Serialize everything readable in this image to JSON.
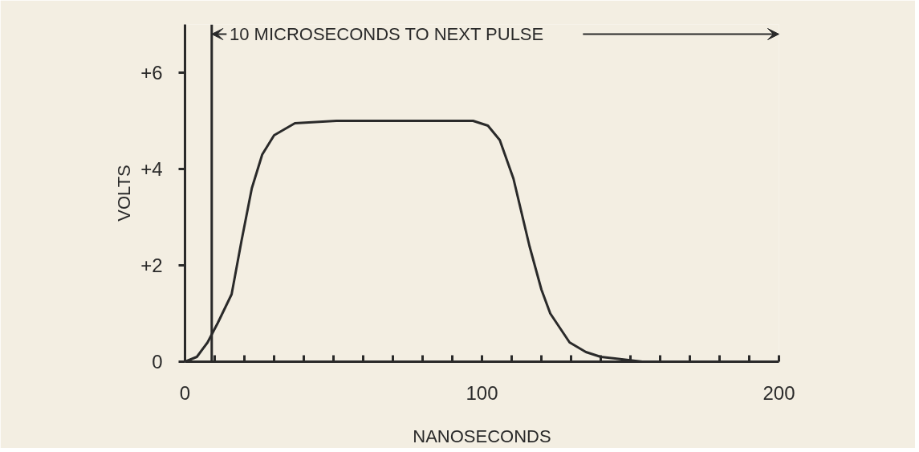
{
  "chart_data": {
    "type": "line",
    "xlabel": "NANOSECONDS",
    "ylabel": "VOLTS",
    "x": [
      0,
      4,
      7.6,
      11,
      15.7,
      19,
      22.5,
      26,
      30,
      37,
      51,
      70,
      90,
      97,
      102,
      106,
      110.6,
      116,
      120,
      123,
      129.5,
      135,
      140,
      154,
      175,
      200
    ],
    "series": [
      {
        "color": "#2a2a2a",
        "values": [
          0,
          0.1,
          0.4,
          0.8,
          1.4,
          2.5,
          3.6,
          4.3,
          4.7,
          4.95,
          5.0,
          5.0,
          5.0,
          5.0,
          4.9,
          4.6,
          3.8,
          2.4,
          1.5,
          1.0,
          0.4,
          0.2,
          0.1,
          0,
          0,
          0
        ]
      }
    ],
    "xlim": [
      0,
      200
    ],
    "ylim": [
      0,
      7
    ],
    "xticks": [
      0,
      {
        "value": 10,
        "label": null
      },
      {
        "value": 20,
        "label": null
      },
      {
        "value": 30,
        "label": null
      },
      {
        "value": 40,
        "label": null
      },
      {
        "value": 50,
        "label": null
      },
      {
        "value": 60,
        "label": null
      },
      {
        "value": 70,
        "label": null
      },
      {
        "value": 80,
        "label": null
      },
      {
        "value": 90,
        "label": null
      },
      100,
      {
        "value": 110,
        "label": null
      },
      {
        "value": 120,
        "label": null
      },
      {
        "value": 130,
        "label": null
      },
      {
        "value": 140,
        "label": null
      },
      {
        "value": 150,
        "label": null
      },
      {
        "value": 160,
        "label": null
      },
      {
        "value": 170,
        "label": null
      },
      {
        "value": 180,
        "label": null
      },
      {
        "value": 190,
        "label": null
      },
      200
    ],
    "yticks": [
      0,
      {
        "value": 2,
        "label": "+2"
      },
      {
        "value": 4,
        "label": "+4"
      },
      {
        "value": 6,
        "label": "+6"
      }
    ],
    "ref_lines": [
      {
        "axis": "x",
        "value": 9,
        "label": "10 MICROSECONDS TO NEXT PULSE",
        "color": "#2a2a2a"
      }
    ],
    "grid": false,
    "line_style": "solid",
    "marker": "none"
  }
}
